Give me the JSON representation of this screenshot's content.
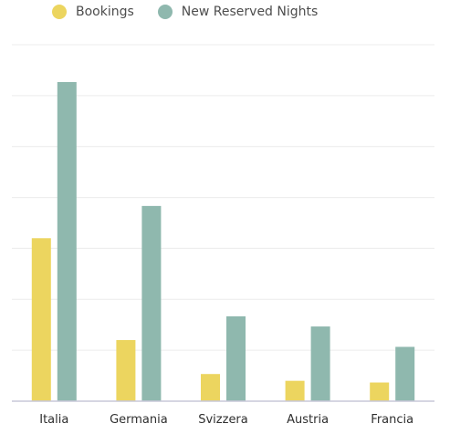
{
  "chart_data": {
    "type": "bar",
    "categories": [
      "Italia",
      "Germania",
      "Svizzera",
      "Austria",
      "Francia"
    ],
    "series": [
      {
        "name": "Bookings",
        "color": "#ecd55f",
        "values": [
          48,
          18,
          8,
          6,
          5.5
        ]
      },
      {
        "name": "New Reserved Nights",
        "color": "#8fb8ae",
        "values": [
          94,
          57.5,
          25,
          22,
          16
        ]
      }
    ],
    "ylim": [
      0,
      105
    ],
    "grid": true,
    "legend_position": "top-left"
  }
}
